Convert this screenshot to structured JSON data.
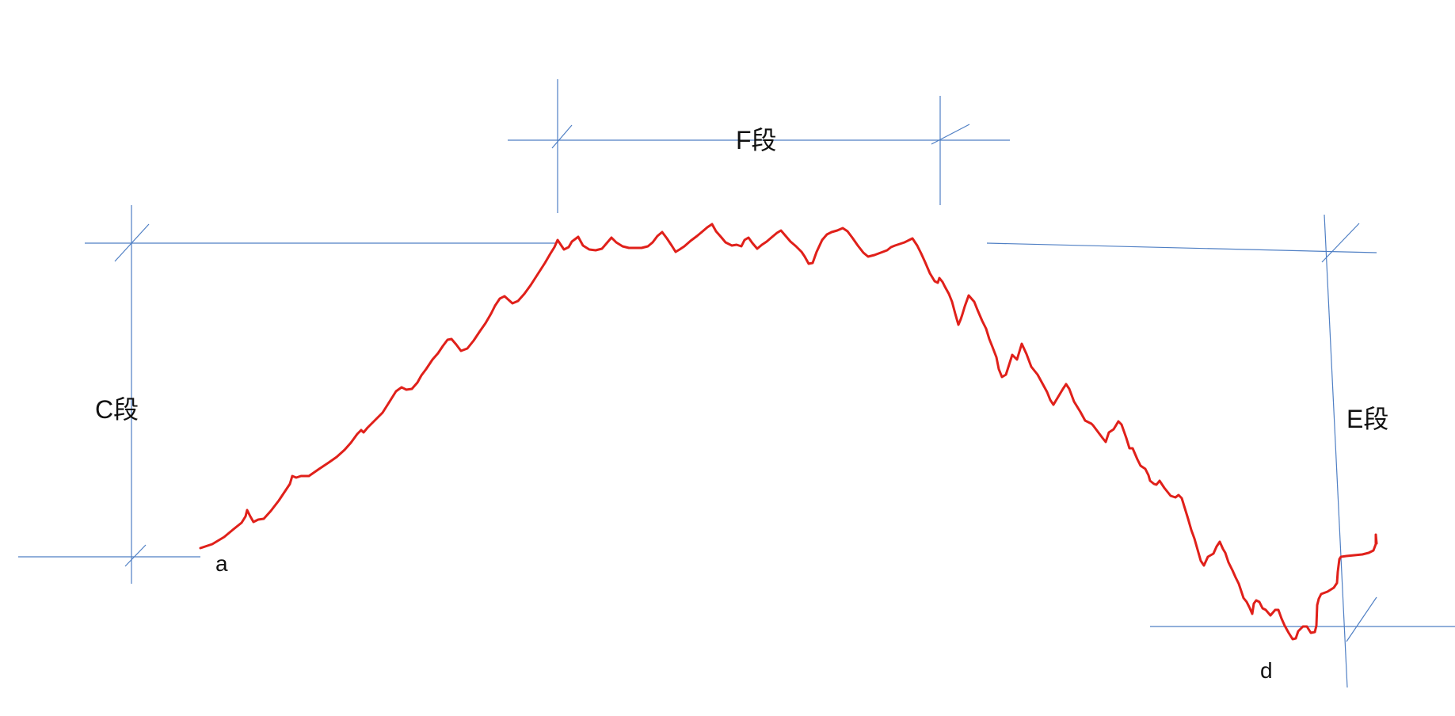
{
  "labels": {
    "segment_c": "C段",
    "segment_f": "F段",
    "segment_e": "E段",
    "point_a": "a",
    "point_d": "d"
  },
  "colors": {
    "dimension_lines": "#4f7fc4",
    "curve": "#e0201a",
    "text": "#111111",
    "background": "#ffffff"
  }
}
